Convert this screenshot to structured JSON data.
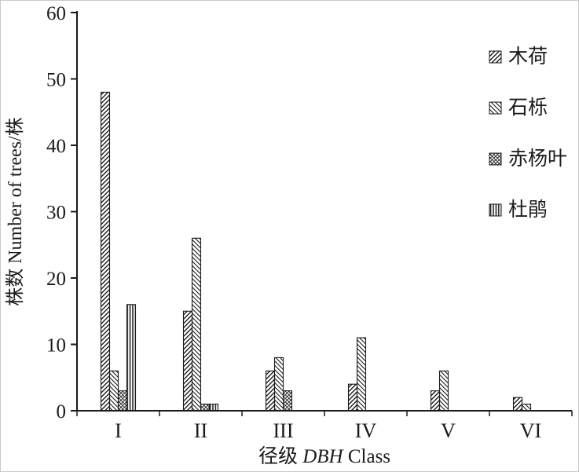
{
  "figure": {
    "background": "#ffffff",
    "ink_color": "#1a1a1a"
  },
  "chart_data": {
    "type": "bar",
    "title": "",
    "categories": [
      "I",
      "II",
      "III",
      "IV",
      "V",
      "VI"
    ],
    "series": [
      {
        "name": "木荷",
        "pattern": "diag-up",
        "values": [
          48,
          15,
          6,
          4,
          3,
          2
        ]
      },
      {
        "name": "石栎",
        "pattern": "diag-down",
        "values": [
          6,
          26,
          8,
          11,
          6,
          1
        ]
      },
      {
        "name": "赤杨叶",
        "pattern": "cross",
        "values": [
          3,
          1,
          3,
          0,
          0,
          0
        ]
      },
      {
        "name": "杜鹃",
        "pattern": "vertical",
        "values": [
          16,
          1,
          0,
          0,
          0,
          0
        ]
      }
    ],
    "ylabel": "株数 Number of trees/株",
    "xlabel": {
      "pre": "径级 ",
      "italic": "DBH",
      "post": " Class"
    },
    "ylim": [
      0,
      60
    ],
    "ytick_step": 10,
    "grid": false,
    "legend_position": "top-right",
    "ink": "#1a1a1a"
  }
}
